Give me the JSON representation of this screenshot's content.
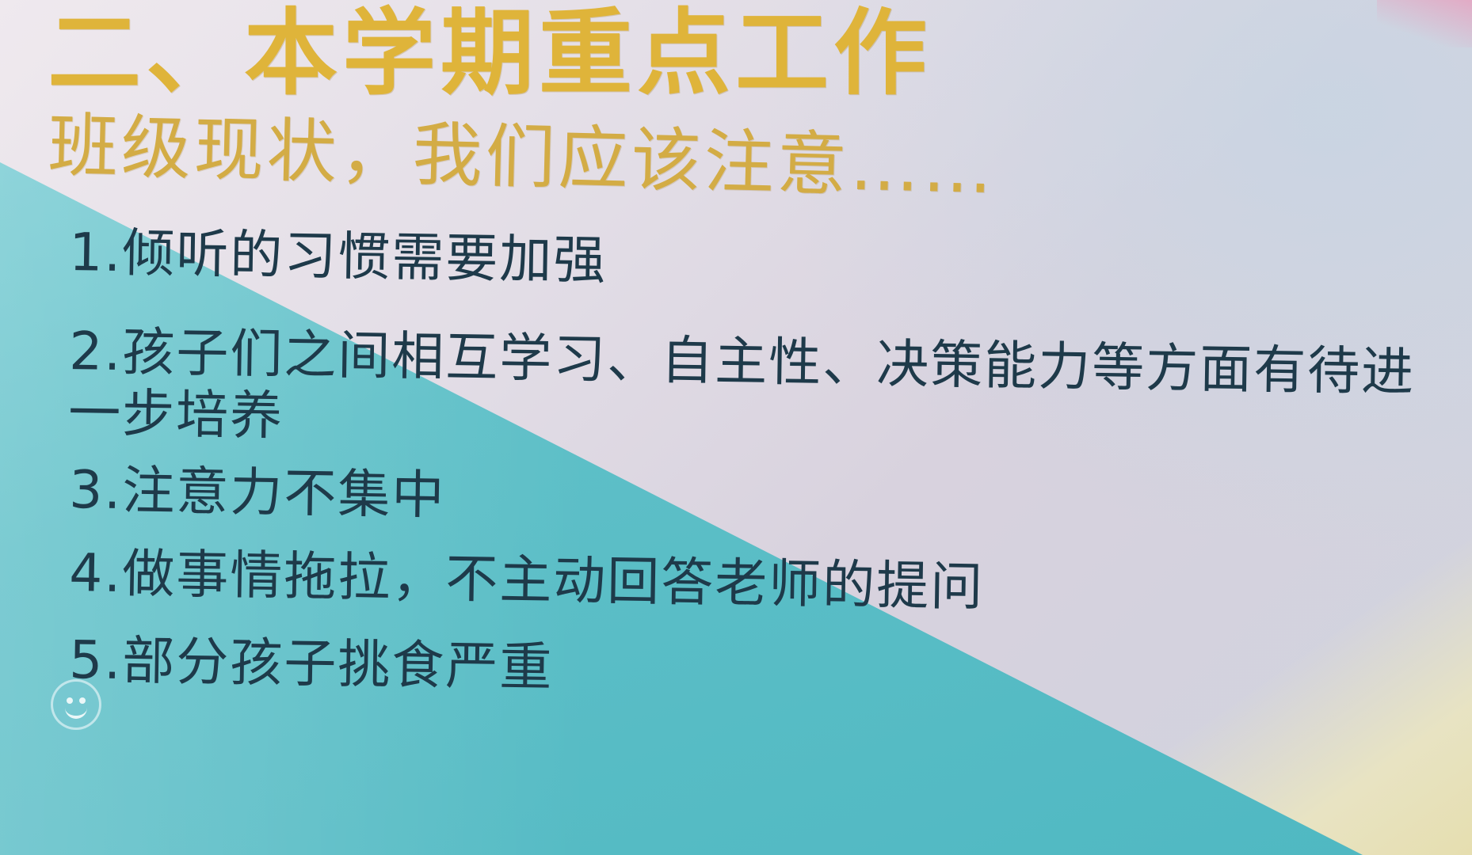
{
  "slide": {
    "heading": "二、本学期重点工作",
    "subheading": "班级现状，我们应该注意……",
    "items": [
      "1.倾听的习惯需要加强",
      "2.孩子们之间相互学习、自主性、决策能力等方面有待进一步培养",
      "3.注意力不集中",
      "4.做事情拖拉，不主动回答老师的提问",
      "5.部分孩子挑食严重"
    ]
  },
  "overlay": {
    "icon": "smiley-face-icon"
  },
  "colors": {
    "heading": "#dfb43a",
    "body_text": "#1e3a4a",
    "teal_band": "#5fc0c8",
    "background": "#e2dde6"
  }
}
